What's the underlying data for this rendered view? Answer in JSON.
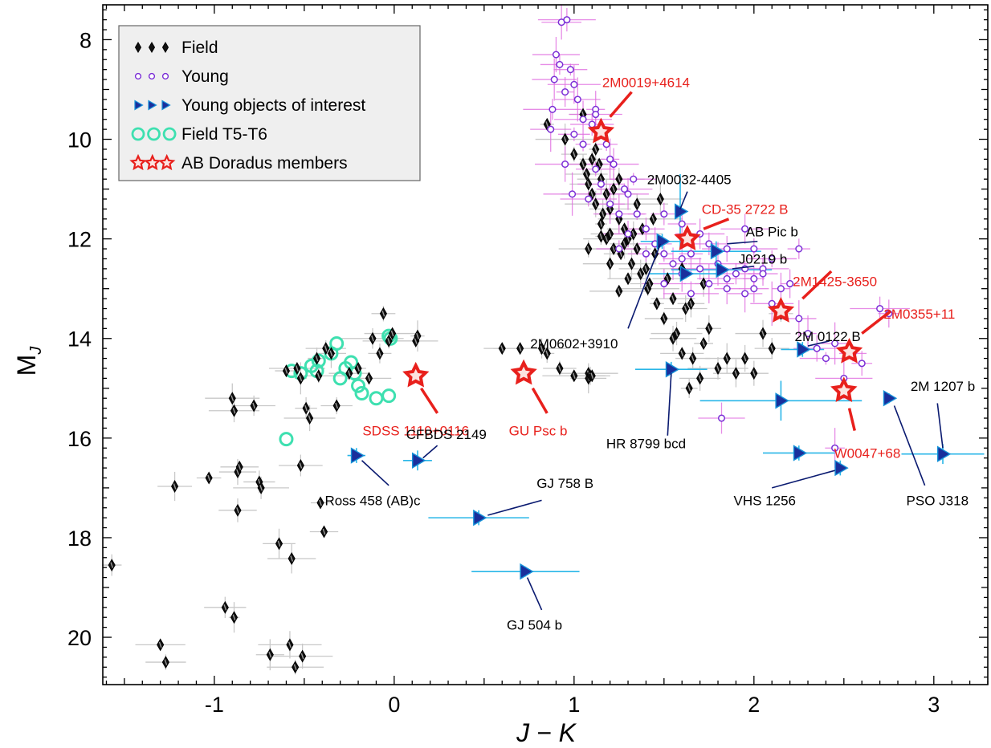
{
  "chart_data": {
    "type": "scatter",
    "xlabel": "J − K",
    "ylabel_main": "M",
    "ylabel_sub": "J",
    "xlim": [
      -1.62,
      3.3
    ],
    "ylim": [
      7.3,
      20.95
    ],
    "y_inverted": true,
    "x_ticks": [
      -1,
      0,
      1,
      2,
      3
    ],
    "y_ticks": [
      8,
      10,
      12,
      14,
      16,
      18,
      20
    ],
    "legend_position": "top-left",
    "legend": [
      {
        "symbol": "field",
        "label": "Field"
      },
      {
        "symbol": "young",
        "label": "Young"
      },
      {
        "symbol": "interest",
        "label": "Young objects of interest"
      },
      {
        "symbol": "t5t6",
        "label": "Field T5-T6"
      },
      {
        "symbol": "abdor",
        "label": "AB Doradus members"
      }
    ],
    "colors": {
      "field": "#000000",
      "young": "#7b2fd6",
      "young_err": "#e070e0",
      "field_err": "#c8c8c8",
      "interest_fill": "#1a2f9c",
      "interest_err": "#29b6e8",
      "t5t6": "#3ee0b0",
      "abdor": "#e8201c",
      "annot_black_line": "#0a1a70"
    },
    "field": [
      [
        -1.57,
        18.55
      ],
      [
        -1.3,
        20.15
      ],
      [
        -1.27,
        20.5
      ],
      [
        -1.22,
        16.97
      ],
      [
        -1.03,
        16.8
      ],
      [
        -0.9,
        15.2
      ],
      [
        -0.89,
        15.45
      ],
      [
        -0.87,
        16.68
      ],
      [
        -0.86,
        16.58
      ],
      [
        -0.87,
        17.45
      ],
      [
        -0.89,
        19.6
      ],
      [
        -0.94,
        19.4
      ],
      [
        -0.78,
        15.35
      ],
      [
        -0.75,
        16.88
      ],
      [
        -0.74,
        17.0
      ],
      [
        -0.69,
        20.35
      ],
      [
        -0.64,
        18.12
      ],
      [
        -0.6,
        14.65
      ],
      [
        -0.58,
        20.15
      ],
      [
        -0.57,
        18.42
      ],
      [
        -0.55,
        20.6
      ],
      [
        -0.54,
        14.6
      ],
      [
        -0.52,
        14.8
      ],
      [
        -0.52,
        16.55
      ],
      [
        -0.51,
        20.38
      ],
      [
        -0.49,
        15.4
      ],
      [
        -0.47,
        15.6
      ],
      [
        -0.43,
        14.4
      ],
      [
        -0.42,
        14.75
      ],
      [
        -0.41,
        17.3
      ],
      [
        -0.39,
        17.88
      ],
      [
        -0.38,
        14.2
      ],
      [
        -0.35,
        14.3
      ],
      [
        -0.32,
        15.35
      ],
      [
        -0.25,
        14.7
      ],
      [
        -0.2,
        14.6
      ],
      [
        -0.14,
        14.8
      ],
      [
        -0.12,
        14.0
      ],
      [
        -0.08,
        14.3
      ],
      [
        -0.06,
        13.5
      ],
      [
        -0.03,
        14.05
      ],
      [
        -0.01,
        13.9
      ],
      [
        0.12,
        14.05
      ],
      [
        0.13,
        13.95
      ],
      [
        0.6,
        14.2
      ],
      [
        0.7,
        14.2
      ],
      [
        0.82,
        14.2
      ],
      [
        0.85,
        14.3
      ],
      [
        0.92,
        14.6
      ],
      [
        1.0,
        14.75
      ],
      [
        1.08,
        14.7
      ],
      [
        1.08,
        14.8
      ],
      [
        1.09,
        14.75
      ],
      [
        1.1,
        14.75
      ],
      [
        0.85,
        9.7
      ],
      [
        0.95,
        10.0
      ],
      [
        1.0,
        10.3
      ],
      [
        1.05,
        9.5
      ],
      [
        1.05,
        10.5
      ],
      [
        1.07,
        10.7
      ],
      [
        1.08,
        10.9
      ],
      [
        1.1,
        10.4
      ],
      [
        1.1,
        11.1
      ],
      [
        1.12,
        11.3
      ],
      [
        1.14,
        10.5
      ],
      [
        1.15,
        10.8
      ],
      [
        1.16,
        11.5
      ],
      [
        1.18,
        11.1
      ],
      [
        1.2,
        11.9
      ],
      [
        1.22,
        11.0
      ],
      [
        1.25,
        11.6
      ],
      [
        1.26,
        12.3
      ],
      [
        1.28,
        11.8
      ],
      [
        1.3,
        12.0
      ],
      [
        1.32,
        12.5
      ],
      [
        1.35,
        12.2
      ],
      [
        1.37,
        12.7
      ],
      [
        1.4,
        12.6
      ],
      [
        1.41,
        13.0
      ],
      [
        1.45,
        12.3
      ],
      [
        1.46,
        13.3
      ],
      [
        1.5,
        13.6
      ],
      [
        1.52,
        12.8
      ],
      [
        1.55,
        14.0
      ],
      [
        1.57,
        13.9
      ],
      [
        1.6,
        14.3
      ],
      [
        1.62,
        13.4
      ],
      [
        1.64,
        15.0
      ],
      [
        1.66,
        14.4
      ],
      [
        1.7,
        14.8
      ],
      [
        1.72,
        14.1
      ],
      [
        1.75,
        13.8
      ],
      [
        1.8,
        14.6
      ],
      [
        1.85,
        14.4
      ],
      [
        1.9,
        14.7
      ],
      [
        1.95,
        14.4
      ],
      [
        2.0,
        14.7
      ],
      [
        2.05,
        13.9
      ],
      [
        2.1,
        14.2
      ],
      [
        2.15,
        13.5
      ],
      [
        1.2,
        11.4
      ],
      [
        1.15,
        11.7
      ],
      [
        1.28,
        12.1
      ],
      [
        1.33,
        11.9
      ],
      [
        1.38,
        11.8
      ],
      [
        1.44,
        11.6
      ],
      [
        1.48,
        11.2
      ],
      [
        1.25,
        10.8
      ],
      [
        1.12,
        10.2
      ],
      [
        1.18,
        12.0
      ],
      [
        1.22,
        12.2
      ],
      [
        1.3,
        12.8
      ],
      [
        1.42,
        12.9
      ],
      [
        1.55,
        13.2
      ],
      [
        1.6,
        12.6
      ],
      [
        1.35,
        11.3
      ],
      [
        1.08,
        12.2
      ],
      [
        1.15,
        11.95
      ],
      [
        1.2,
        12.5
      ],
      [
        1.25,
        13.05
      ],
      [
        1.65,
        13.3
      ],
      [
        1.72,
        12.9
      ]
    ],
    "young": [
      [
        0.93,
        7.65
      ],
      [
        0.96,
        7.6
      ],
      [
        0.9,
        8.3
      ],
      [
        0.92,
        8.5
      ],
      [
        0.98,
        8.6
      ],
      [
        1.0,
        8.9
      ],
      [
        1.02,
        9.2
      ],
      [
        0.95,
        9.05
      ],
      [
        0.88,
        9.4
      ],
      [
        1.05,
        9.6
      ],
      [
        1.1,
        9.7
      ],
      [
        1.12,
        9.4
      ],
      [
        1.18,
        10.1
      ],
      [
        1.2,
        10.4
      ],
      [
        1.15,
        10.9
      ],
      [
        1.08,
        11.2
      ],
      [
        0.99,
        11.1
      ],
      [
        1.2,
        11.3
      ],
      [
        1.25,
        11.5
      ],
      [
        1.3,
        11.9
      ],
      [
        1.35,
        11.5
      ],
      [
        1.4,
        11.8
      ],
      [
        1.45,
        12.1
      ],
      [
        1.5,
        12.3
      ],
      [
        1.55,
        12.5
      ],
      [
        1.6,
        12.7
      ],
      [
        1.65,
        12.3
      ],
      [
        1.7,
        12.6
      ],
      [
        1.75,
        12.9
      ],
      [
        1.8,
        12.5
      ],
      [
        1.85,
        13.0
      ],
      [
        1.9,
        12.7
      ],
      [
        1.95,
        13.1
      ],
      [
        2.0,
        12.8
      ],
      [
        2.05,
        12.6
      ],
      [
        2.1,
        13.3
      ],
      [
        2.15,
        13.0
      ],
      [
        2.2,
        12.9
      ],
      [
        2.25,
        13.6
      ],
      [
        2.3,
        13.9
      ],
      [
        2.35,
        14.2
      ],
      [
        2.4,
        14.4
      ],
      [
        2.45,
        14.1
      ],
      [
        2.5,
        14.8
      ],
      [
        2.55,
        14.3
      ],
      [
        2.6,
        14.5
      ],
      [
        2.7,
        13.4
      ],
      [
        2.75,
        13.5
      ],
      [
        2.45,
        16.2
      ],
      [
        1.82,
        15.6
      ],
      [
        1.3,
        11.1
      ],
      [
        1.25,
        12.2
      ],
      [
        1.4,
        12.3
      ],
      [
        1.7,
        11.9
      ],
      [
        1.85,
        12.2
      ],
      [
        1.95,
        12.6
      ],
      [
        2.05,
        12.7
      ],
      [
        2.25,
        12.2
      ],
      [
        1.75,
        12.1
      ],
      [
        1.6,
        11.7
      ],
      [
        1.5,
        11.5
      ],
      [
        1.33,
        10.8
      ],
      [
        1.22,
        10.5
      ],
      [
        1.12,
        10.6
      ],
      [
        1.05,
        10.1
      ],
      [
        1.0,
        9.9
      ],
      [
        0.95,
        10.5
      ],
      [
        0.87,
        9.8
      ],
      [
        0.89,
        8.8
      ],
      [
        1.12,
        9.5
      ],
      [
        1.28,
        11.0
      ],
      [
        1.5,
        12.9
      ],
      [
        1.6,
        12.4
      ],
      [
        1.65,
        13.1
      ],
      [
        1.85,
        12.8
      ],
      [
        2.0,
        13.0
      ],
      [
        2.1,
        12.4
      ],
      [
        2.0,
        12.2
      ],
      [
        1.95,
        11.8
      ]
    ],
    "t5t6": [
      [
        -0.6,
        16.02
      ],
      [
        -0.57,
        14.65
      ],
      [
        -0.52,
        14.7
      ],
      [
        -0.46,
        14.55
      ],
      [
        -0.43,
        14.65
      ],
      [
        -0.42,
        14.45
      ],
      [
        -0.35,
        14.3
      ],
      [
        -0.32,
        14.1
      ],
      [
        -0.3,
        14.8
      ],
      [
        -0.27,
        14.6
      ],
      [
        -0.24,
        14.48
      ],
      [
        -0.22,
        14.7
      ],
      [
        -0.2,
        14.95
      ],
      [
        -0.18,
        15.1
      ],
      [
        -0.1,
        15.2
      ],
      [
        -0.03,
        15.15
      ],
      [
        -0.03,
        13.95
      ],
      [
        -0.02,
        14.0
      ]
    ],
    "interest": [
      {
        "x": 1.59,
        "y": 11.45,
        "xerr": 0.0,
        "yerr": 0.75
      },
      {
        "x": 1.49,
        "y": 12.05,
        "xerr": 0.12,
        "yerr": 0.15
      },
      {
        "x": 1.79,
        "y": 12.25,
        "xerr": 0.25,
        "yerr": 0.2
      },
      {
        "x": 1.82,
        "y": 12.62,
        "xerr": 0.28,
        "yerr": 0.1
      },
      {
        "x": 1.62,
        "y": 12.7,
        "xerr": 0.2,
        "yerr": 0.1
      },
      {
        "x": 2.27,
        "y": 14.22,
        "xerr": 0.12,
        "yerr": 0.15
      },
      {
        "x": 1.54,
        "y": 14.62,
        "xerr": 0.2,
        "yerr": 0.15
      },
      {
        "x": 2.15,
        "y": 15.25,
        "xerr": 0.45,
        "yerr": 0.4
      },
      {
        "x": 2.75,
        "y": 15.2,
        "xerr": 0.0,
        "yerr": 0.1
      },
      {
        "x": 2.25,
        "y": 16.3,
        "xerr": 0.2,
        "yerr": 0.15
      },
      {
        "x": 3.05,
        "y": 16.32,
        "xerr": 0.23,
        "yerr": 0.2
      },
      {
        "x": 2.48,
        "y": 16.6,
        "xerr": 0.0,
        "yerr": 0.15
      },
      {
        "x": -0.21,
        "y": 16.35,
        "xerr": 0.05,
        "yerr": 0.15
      },
      {
        "x": 0.13,
        "y": 16.45,
        "xerr": 0.08,
        "yerr": 0.2
      },
      {
        "x": 0.47,
        "y": 17.6,
        "xerr": 0.28,
        "yerr": 0.15
      },
      {
        "x": 0.73,
        "y": 18.68,
        "xerr": 0.3,
        "yerr": 0.1
      }
    ],
    "abdor": [
      [
        1.15,
        9.85
      ],
      [
        1.63,
        12.0
      ],
      [
        2.15,
        13.45
      ],
      [
        2.53,
        14.27
      ],
      [
        2.5,
        15.05
      ],
      [
        0.12,
        14.75
      ],
      [
        0.72,
        14.7
      ]
    ],
    "annotations": [
      {
        "text": "2M0019+4614",
        "color": "red",
        "tx": 1.4,
        "ty": 8.95,
        "anchor": "middle",
        "line": [
          [
            1.2,
            9.55
          ],
          [
            1.32,
            9.05
          ]
        ]
      },
      {
        "text": "2M0032-4405",
        "color": "black",
        "tx": 1.64,
        "ty": 10.9,
        "anchor": "middle",
        "line": [
          [
            1.59,
            11.4
          ],
          [
            1.63,
            11.05
          ]
        ]
      },
      {
        "text": "CD-35 2722 B",
        "color": "red",
        "tx": 1.95,
        "ty": 11.5,
        "anchor": "middle",
        "line": [
          [
            1.72,
            11.8
          ],
          [
            1.86,
            11.6
          ]
        ]
      },
      {
        "text": "AB Pic b",
        "color": "black",
        "tx": 2.1,
        "ty": 11.95,
        "anchor": "middle",
        "line": [
          [
            1.85,
            12.1
          ],
          [
            2.02,
            12.05
          ]
        ]
      },
      {
        "text": "J0219 b",
        "color": "black",
        "tx": 2.05,
        "ty": 12.5,
        "anchor": "middle",
        "line": [
          [
            1.88,
            12.6
          ],
          [
            2.0,
            12.55
          ]
        ]
      },
      {
        "text": "2M1425-3650",
        "color": "red",
        "tx": 2.45,
        "ty": 12.95,
        "anchor": "middle",
        "line": [
          [
            2.27,
            13.2
          ],
          [
            2.43,
            12.65
          ]
        ]
      },
      {
        "text": "2M0355+11",
        "color": "red",
        "tx": 2.92,
        "ty": 13.6,
        "anchor": "middle",
        "line": [
          [
            2.6,
            13.9
          ],
          [
            2.76,
            13.45
          ]
        ]
      },
      {
        "text": "2M 0122 B",
        "color": "black",
        "tx": 2.41,
        "ty": 14.05,
        "anchor": "middle",
        "line": [
          [
            2.3,
            14.15
          ],
          [
            2.42,
            14.05
          ]
        ]
      },
      {
        "text": "2M0602+3910",
        "color": "black",
        "tx": 1.0,
        "ty": 14.2,
        "anchor": "middle",
        "line": [
          [
            1.3,
            13.8
          ],
          [
            1.48,
            12.1
          ]
        ]
      },
      {
        "text": "2M 1207 b",
        "color": "black",
        "tx": 3.05,
        "ty": 15.05,
        "anchor": "middle",
        "line": [
          [
            3.05,
            16.2
          ],
          [
            3.02,
            15.3
          ]
        ]
      },
      {
        "text": "HR 8799 bcd",
        "color": "black",
        "tx": 1.4,
        "ty": 16.2,
        "anchor": "middle",
        "line": [
          [
            1.54,
            14.7
          ],
          [
            1.52,
            15.95
          ]
        ]
      },
      {
        "text": "SDSS 1110+0116",
        "color": "red",
        "tx": 0.12,
        "ty": 15.95,
        "anchor": "middle",
        "line": [
          [
            0.15,
            15.0
          ],
          [
            0.24,
            15.5
          ]
        ]
      },
      {
        "text": "GU Psc b",
        "color": "red",
        "tx": 0.8,
        "ty": 15.95,
        "anchor": "middle",
        "line": [
          [
            0.77,
            15.0
          ],
          [
            0.85,
            15.5
          ]
        ]
      },
      {
        "text": "CFBDS 2149",
        "color": "black",
        "tx": 0.29,
        "ty": 16.02,
        "anchor": "middle",
        "line": [
          [
            0.16,
            16.4
          ],
          [
            0.24,
            16.15
          ]
        ]
      },
      {
        "text": "W0047+68",
        "color": "red",
        "tx": 2.63,
        "ty": 16.4,
        "anchor": "middle",
        "line": [
          [
            2.53,
            15.4
          ],
          [
            2.56,
            15.85
          ]
        ]
      },
      {
        "text": "Ross 458 (AB)c",
        "color": "black",
        "tx": -0.12,
        "ty": 17.35,
        "anchor": "middle",
        "line": [
          [
            -0.18,
            16.45
          ],
          [
            -0.03,
            16.95
          ]
        ]
      },
      {
        "text": "GJ 758 B",
        "color": "black",
        "tx": 0.95,
        "ty": 17.0,
        "anchor": "middle",
        "line": [
          [
            0.52,
            17.55
          ],
          [
            0.82,
            17.25
          ]
        ]
      },
      {
        "text": "VHS 1256",
        "color": "black",
        "tx": 2.06,
        "ty": 17.35,
        "anchor": "middle",
        "line": [
          [
            2.1,
            17.0
          ],
          [
            2.45,
            16.65
          ]
        ]
      },
      {
        "text": "PSO J318",
        "color": "black",
        "tx": 3.02,
        "ty": 17.35,
        "anchor": "middle",
        "line": [
          [
            2.78,
            15.35
          ],
          [
            2.95,
            16.95
          ]
        ]
      },
      {
        "text": "GJ 504 b",
        "color": "black",
        "tx": 0.78,
        "ty": 19.85,
        "anchor": "middle",
        "line": [
          [
            0.74,
            18.8
          ],
          [
            0.82,
            19.45
          ]
        ]
      }
    ]
  }
}
